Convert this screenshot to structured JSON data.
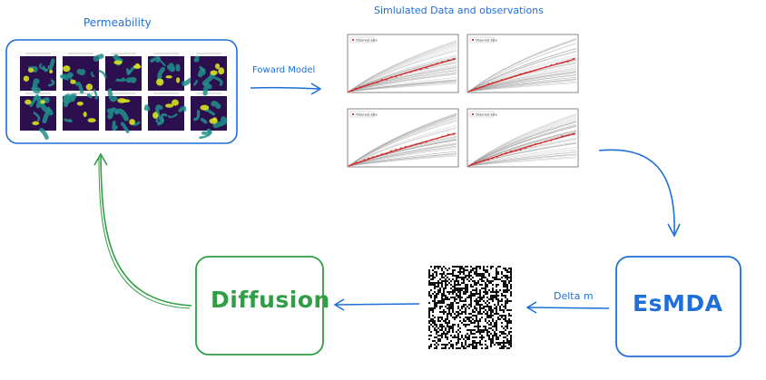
{
  "labels": {
    "permeability": "Permeability",
    "simulated": "Simlulated Data and observations",
    "forward_model": "Foward Model",
    "delta_m": "Delta m",
    "diffusion": "Diffusion",
    "esmda": "EsMDA"
  },
  "colors": {
    "blue": "#1e6fd9",
    "green": "#2f9e44",
    "observed": "#d62728",
    "ensemble": "#9a9a9a",
    "perm_dark": "#2b0f4e",
    "perm_mid": "#21918c",
    "perm_high": "#d6e21f"
  },
  "permeability_panel": {
    "rows": 2,
    "cols": 5
  },
  "simulation_panel": {
    "plot_count": 4,
    "legend_entry": "Observed data",
    "ensemble_count": 40
  },
  "noise_image": {
    "icon": "noise-image"
  }
}
